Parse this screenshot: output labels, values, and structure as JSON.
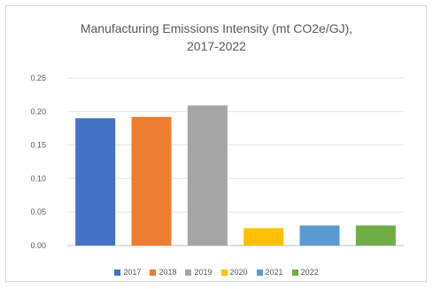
{
  "chart_data": {
    "type": "bar",
    "title": "Manufacturing Emissions Intensity (mt CO2e/GJ),",
    "subtitle": "2017-2022",
    "categories": [
      "2017",
      "2018",
      "2019",
      "2020",
      "2021",
      "2022"
    ],
    "values": [
      0.19,
      0.192,
      0.209,
      0.026,
      0.03,
      0.03
    ],
    "colors": [
      "#4472c4",
      "#ed7d31",
      "#a5a5a5",
      "#ffc000",
      "#5b9bd5",
      "#70ad47"
    ],
    "yticks": [
      "0.00",
      "0.05",
      "0.10",
      "0.15",
      "0.20",
      "0.25"
    ],
    "ylim": [
      0,
      0.25
    ],
    "grid": true,
    "legend_position": "bottom",
    "legend": [
      "2017",
      "2018",
      "2019",
      "2020",
      "2021",
      "2022"
    ]
  }
}
